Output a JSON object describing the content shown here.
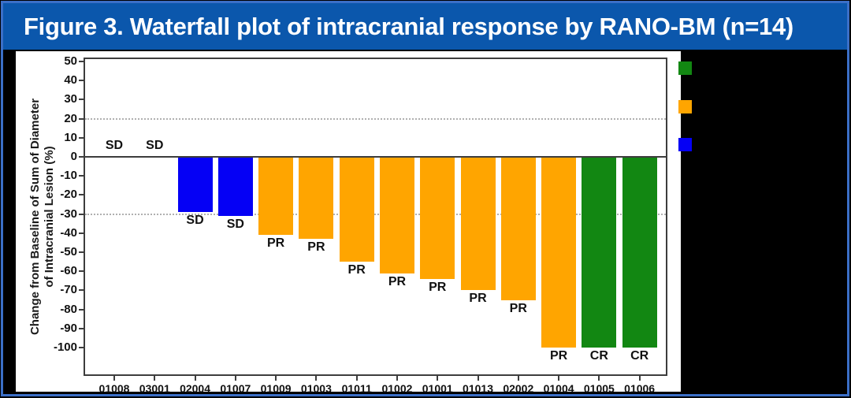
{
  "figure": {
    "title": "Figure 3. Waterfall plot of intracranial response by RANO-BM (n=14)"
  },
  "colors": {
    "title_bar": "#0b57ac",
    "frame_border": "#3b6fc7",
    "background": "#000000",
    "panel": "#ffffff",
    "green": "#128712",
    "orange": "#ffa500",
    "blue": "#0500f5",
    "axis": "#3d3d3d",
    "gridline": "#b0b0b0"
  },
  "chart_data": {
    "type": "bar",
    "title": "Figure 3. Waterfall plot of intracranial response by RANO-BM (n=14)",
    "ylabel_line1": "Change from Baseline of Sum of Diameter",
    "ylabel_line2": "of Intracranial Lesion (%)",
    "xlabel": "",
    "categories": [
      "01008",
      "03001",
      "02004",
      "01007",
      "01009",
      "01003",
      "01011",
      "01002",
      "01001",
      "01013",
      "02002",
      "01004",
      "01005",
      "01006"
    ],
    "values": [
      0,
      0,
      -29,
      -31,
      -41,
      -43,
      -55,
      -61,
      -64,
      -70,
      -75,
      -100,
      -100,
      -100
    ],
    "bar_labels": [
      "SD",
      "SD",
      "SD",
      "SD",
      "PR",
      "PR",
      "PR",
      "PR",
      "PR",
      "PR",
      "PR",
      "PR",
      "CR",
      "CR"
    ],
    "bar_colors": [
      "blue",
      "blue",
      "blue",
      "blue",
      "orange",
      "orange",
      "orange",
      "orange",
      "orange",
      "orange",
      "orange",
      "orange",
      "green",
      "green"
    ],
    "yticks": [
      50,
      40,
      30,
      20,
      10,
      0,
      -10,
      -20,
      -30,
      -40,
      -50,
      -60,
      -70,
      -80,
      -90,
      -100
    ],
    "ylim": [
      -116,
      52
    ],
    "gridlines_dotted_at": [
      20,
      -30
    ],
    "grid": "dotted-reference-lines-only",
    "legend_position": "right",
    "legend_swatch_colors": [
      "green",
      "orange",
      "blue"
    ]
  }
}
